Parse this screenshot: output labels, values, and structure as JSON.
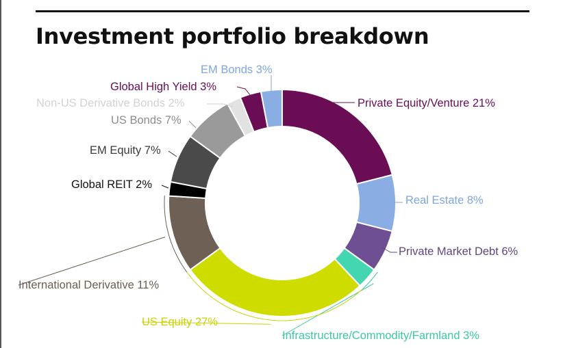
{
  "chart_data": {
    "type": "pie",
    "title": "Investment portfolio breakdown",
    "unit": "%",
    "slices": [
      {
        "label": "Private Equity/Venture",
        "value": 21,
        "text": "Private Equity/Venture 21%",
        "color": "#6a0d55",
        "label_color": "#6a0d55"
      },
      {
        "label": "Real Estate",
        "value": 8,
        "text": "Real Estate 8%",
        "color": "#8aaee4",
        "label_color": "#7ea6e0"
      },
      {
        "label": "Private Market Debt",
        "value": 6,
        "text": "Private Market Debt 6%",
        "color": "#6f4f93",
        "label_color": "#5e477f"
      },
      {
        "label": "Infrastructure/Commodity/Farmland",
        "value": 3,
        "text": "Infrastructure/Commodity/Farmland 3%",
        "color": "#44d6b0",
        "label_color": "#3cc7a4"
      },
      {
        "label": "US Equity",
        "value": 27,
        "text": "US Equity 27%",
        "color": "#cfdc00",
        "label_color": "#c9d400"
      },
      {
        "label": "International Derivative",
        "value": 11,
        "text": "International Derivative 11%",
        "color": "#6e6054",
        "label_color": "#6a5e52"
      },
      {
        "label": "Global REIT",
        "value": 2,
        "text": "Global REIT 2%",
        "color": "#000000",
        "label_color": "#111111"
      },
      {
        "label": "EM Equity",
        "value": 7,
        "text": "EM Equity 7%",
        "color": "#4a4a4a",
        "label_color": "#3a3a3a"
      },
      {
        "label": "US Bonds",
        "value": 7,
        "text": "US Bonds 7%",
        "color": "#9a9a9a",
        "label_color": "#8c8c8c"
      },
      {
        "label": "Non-US Derivative Bonds",
        "value": 2,
        "text": "Non-US Derivative Bonds 2%",
        "color": "#e2e2e2",
        "label_color": "#d2d2d2"
      },
      {
        "label": "Global High Yield",
        "value": 3,
        "text": "Global High Yield 3%",
        "color": "#6a0d55",
        "label_color": "#6a0d55"
      },
      {
        "label": "EM Bonds",
        "value": 3,
        "text": "EM Bonds 3%",
        "color": "#8aaee4",
        "label_color": "#7ea6e0"
      }
    ]
  }
}
